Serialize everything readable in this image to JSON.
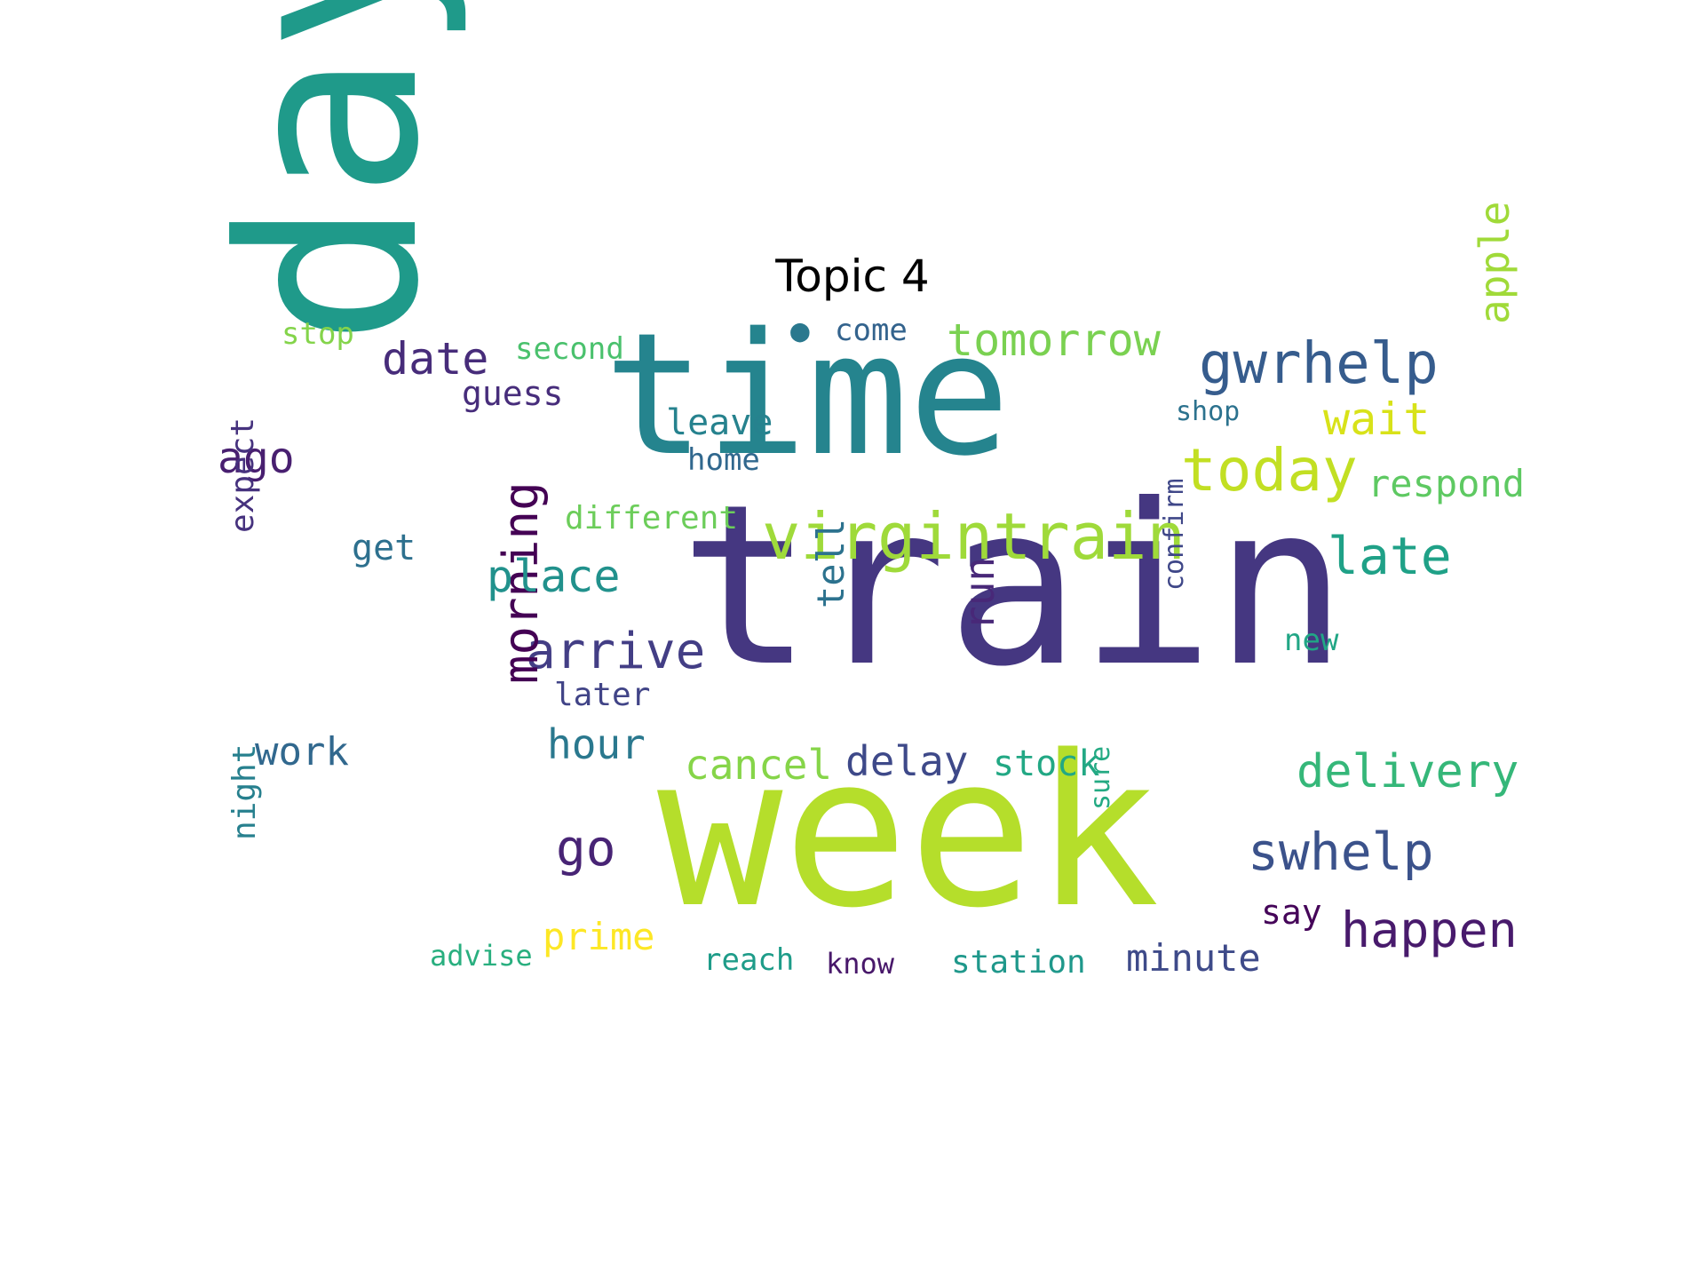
{
  "title": "Topic 4",
  "words": [
    {
      "text": "train",
      "color": "#453781"
    },
    {
      "text": "day",
      "color": "#1f9a8a"
    },
    {
      "text": "time",
      "color": "#25848e"
    },
    {
      "text": "week",
      "color": "#b5de2b"
    },
    {
      "text": "virgintrain",
      "color": "#9fda3a"
    },
    {
      "text": "gwrhelp",
      "color": "#365c8d"
    },
    {
      "text": "today",
      "color": "#c2df23"
    },
    {
      "text": "tomorrow",
      "color": "#7ad151"
    },
    {
      "text": "late",
      "color": "#1fa187"
    },
    {
      "text": "swhelp",
      "color": "#3b528b"
    },
    {
      "text": "happen",
      "color": "#481a6c"
    },
    {
      "text": "delivery",
      "color": "#35b779"
    },
    {
      "text": "arrive",
      "color": "#433e85"
    },
    {
      "text": "morning",
      "color": "#440154"
    },
    {
      "text": "date",
      "color": "#472c7a"
    },
    {
      "text": "place",
      "color": "#21918c"
    },
    {
      "text": "wait",
      "color": "#d8e219"
    },
    {
      "text": "apple",
      "color": "#a0da39"
    },
    {
      "text": "run",
      "color": "#482878"
    },
    {
      "text": "go",
      "color": "#482475"
    },
    {
      "text": "hour",
      "color": "#2a788e"
    },
    {
      "text": "delay",
      "color": "#3e4989"
    },
    {
      "text": "cancel",
      "color": "#86d549"
    },
    {
      "text": "stock",
      "color": "#22a884"
    },
    {
      "text": "ago",
      "color": "#481f70"
    },
    {
      "text": "work",
      "color": "#31688e"
    },
    {
      "text": "respond",
      "color": "#5ec962"
    },
    {
      "text": "prime",
      "color": "#fde725"
    },
    {
      "text": "minute",
      "color": "#3e4a89"
    },
    {
      "text": "tell",
      "color": "#2c728e"
    },
    {
      "text": "leave",
      "color": "#26828e"
    },
    {
      "text": "guess",
      "color": "#472d7b"
    },
    {
      "text": "get",
      "color": "#2d708e"
    },
    {
      "text": "expect",
      "color": "#46327e"
    },
    {
      "text": "station",
      "color": "#1f988b"
    },
    {
      "text": "different",
      "color": "#6ccd5a"
    },
    {
      "text": "home",
      "color": "#31688e"
    },
    {
      "text": "second",
      "color": "#4ac16d"
    },
    {
      "text": "come",
      "color": "#33638d"
    },
    {
      "text": "later",
      "color": "#414487"
    },
    {
      "text": "night",
      "color": "#27808e"
    },
    {
      "text": "reach",
      "color": "#1e9c89"
    },
    {
      "text": "confirm",
      "color": "#3f4788"
    },
    {
      "text": "say",
      "color": "#450559"
    },
    {
      "text": "new",
      "color": "#21a685"
    },
    {
      "text": "stop",
      "color": "#84d44b"
    },
    {
      "text": "shop",
      "color": "#2c728e"
    },
    {
      "text": "know",
      "color": "#48186a"
    },
    {
      "text": "advise",
      "color": "#29af7f"
    },
    {
      "text": "sure",
      "color": "#24aa83"
    },
    {
      "text": "●",
      "color": "#2a788e"
    }
  ]
}
